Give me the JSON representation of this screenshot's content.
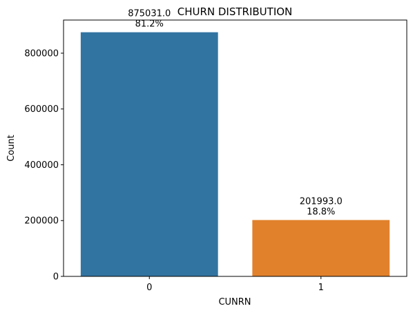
{
  "chart_data": {
    "type": "bar",
    "title": "CHURN DISTRIBUTION",
    "xlabel": "CUNRN",
    "ylabel": "Count",
    "categories": [
      "0",
      "1"
    ],
    "values": [
      875031,
      201993
    ],
    "data_labels": [
      "875031.0\n81.2%",
      "201993.0\n18.8%"
    ],
    "colors": [
      "#3274a1",
      "#e1812c"
    ],
    "ylim": [
      0,
      918783
    ],
    "yticks": [
      0,
      200000,
      400000,
      600000,
      800000
    ],
    "ytick_labels": [
      "0",
      "200000",
      "400000",
      "600000",
      "800000"
    ],
    "grid": false,
    "legend": "none"
  }
}
